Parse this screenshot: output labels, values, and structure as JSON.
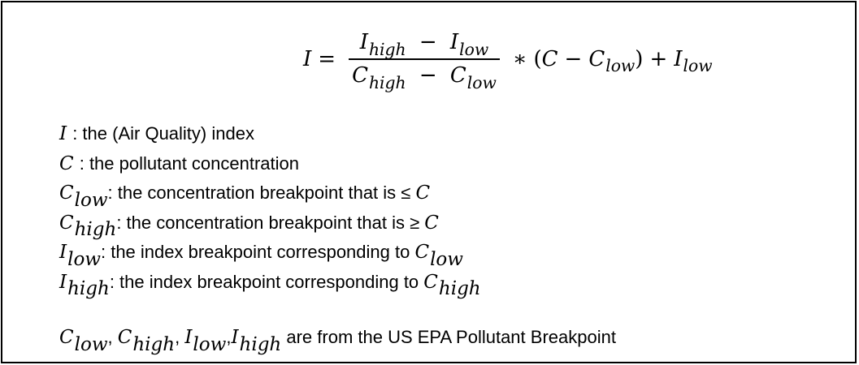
{
  "formula": {
    "lhs": "I",
    "equals": "=",
    "numerator": {
      "a": "I",
      "a_sub": "high",
      "minus": "−",
      "b": "I",
      "b_sub": "low"
    },
    "denominator": {
      "a": "C",
      "a_sub": "high",
      "minus": "−",
      "b": "C",
      "b_sub": "low"
    },
    "times": "∗",
    "open_paren": "(",
    "c": "C",
    "minus2": "−",
    "c_low": "C",
    "c_low_sub": "low",
    "close_paren": ")",
    "plus": "+",
    "i_low": "I",
    "i_low_sub": "low"
  },
  "definitions": [
    {
      "var": "I",
      "sub": "",
      "text": " : the (Air Quality) index",
      "ref_var": "",
      "ref_sub": ""
    },
    {
      "var": "C",
      "sub": "",
      "text": " : the pollutant concentration",
      "ref_var": "",
      "ref_sub": ""
    },
    {
      "var": "C",
      "sub": "low",
      "text": ": the concentration breakpoint that is ≤ ",
      "ref_var": "C",
      "ref_sub": ""
    },
    {
      "var": "C",
      "sub": "high",
      "text": ": the concentration breakpoint that is ≥ ",
      "ref_var": "C",
      "ref_sub": ""
    },
    {
      "var": "I",
      "sub": "low",
      "text": ": the index breakpoint corresponding to ",
      "ref_var": "C",
      "ref_sub": "low"
    },
    {
      "var": "I",
      "sub": "high",
      "text": ": the index breakpoint corresponding to ",
      "ref_var": "C",
      "ref_sub": "high"
    }
  ],
  "footer": {
    "v1": "C",
    "v1_sub": "low",
    "sep1": ",",
    "v2": "C",
    "v2_sub": "high",
    "sep2": ",",
    "v3": "I",
    "v3_sub": "low",
    "sep3": ",",
    "v4": "I",
    "v4_sub": "high",
    "text": " are from the US EPA Pollutant Breakpoint"
  }
}
